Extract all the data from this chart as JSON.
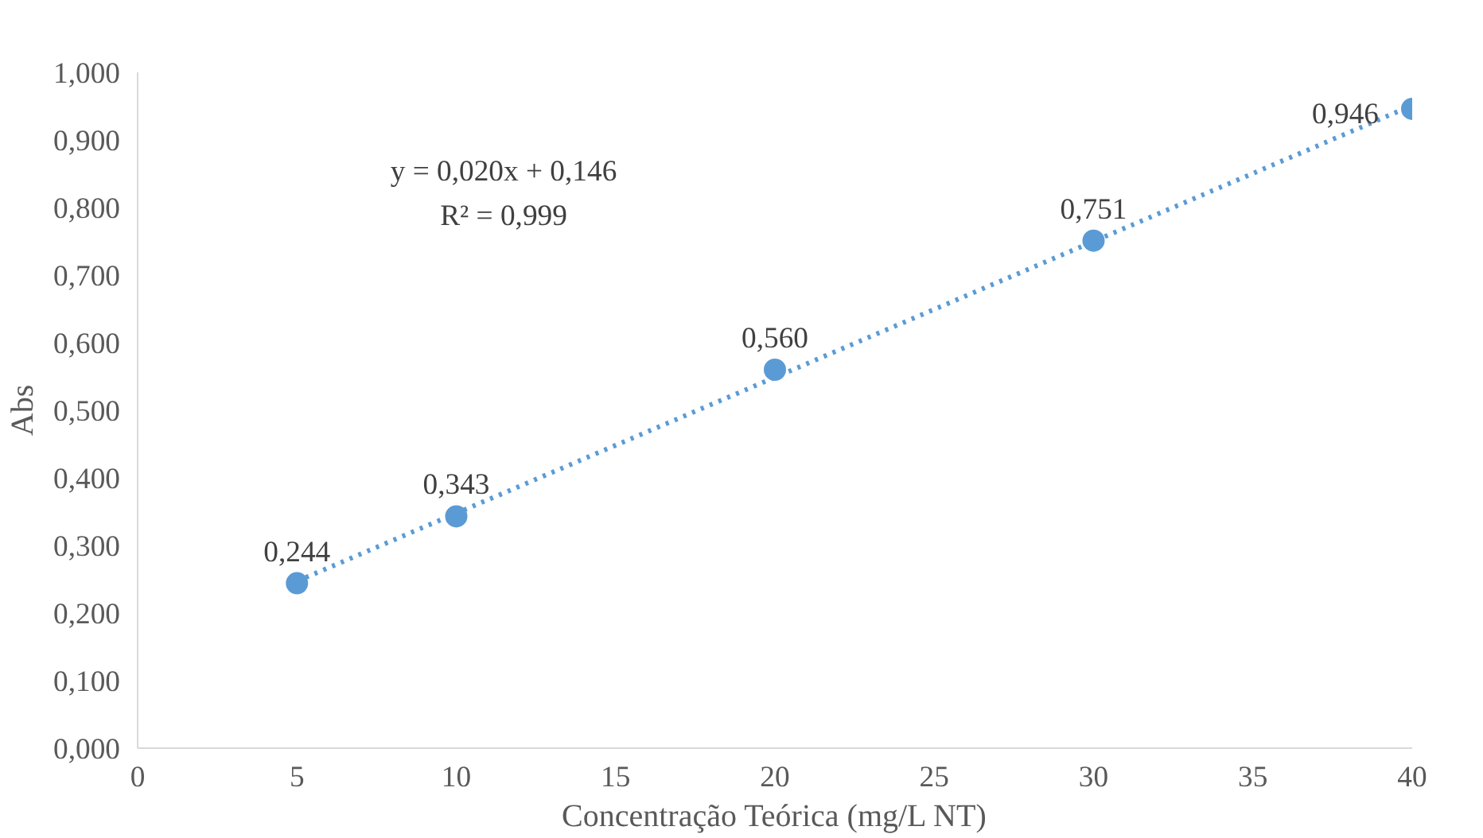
{
  "chart_data": {
    "type": "scatter",
    "xlabel": "Concentração Teórica (mg/L NT)",
    "ylabel": "Abs",
    "series": [
      {
        "color": "#5b9bd5",
        "x": [
          5,
          10,
          20,
          30,
          40
        ],
        "values": [
          0.244,
          0.343,
          0.56,
          0.751,
          0.946
        ],
        "value_labels": [
          "0,244",
          "0,343",
          "0,560",
          "0,751",
          "0,946"
        ],
        "marker": "circle"
      },
      {
        "type": "line",
        "color": "#5b9bd5",
        "x": [
          5,
          40
        ],
        "values": [
          0.247,
          0.951
        ],
        "line_style": "dotted",
        "marker": "none"
      }
    ],
    "annotations": [
      "y = 0,020x + 0,146",
      "R² = 0,999"
    ],
    "xlim": [
      0,
      40
    ],
    "xticks": [
      0,
      5,
      10,
      15,
      20,
      25,
      30,
      35,
      40
    ],
    "ylim": [
      0,
      1
    ],
    "yticks": [
      {
        "value": 0,
        "label": "0,000"
      },
      {
        "value": 0.1,
        "label": "0,100"
      },
      {
        "value": 0.2,
        "label": "0,200"
      },
      {
        "value": 0.3,
        "label": "0,300"
      },
      {
        "value": 0.4,
        "label": "0,400"
      },
      {
        "value": 0.5,
        "label": "0,500"
      },
      {
        "value": 0.6,
        "label": "0,600"
      },
      {
        "value": 0.7,
        "label": "0,700"
      },
      {
        "value": 0.8,
        "label": "0,800"
      },
      {
        "value": 0.9,
        "label": "0,900"
      },
      {
        "value": 1,
        "label": "1,000"
      }
    ],
    "grid": false
  }
}
